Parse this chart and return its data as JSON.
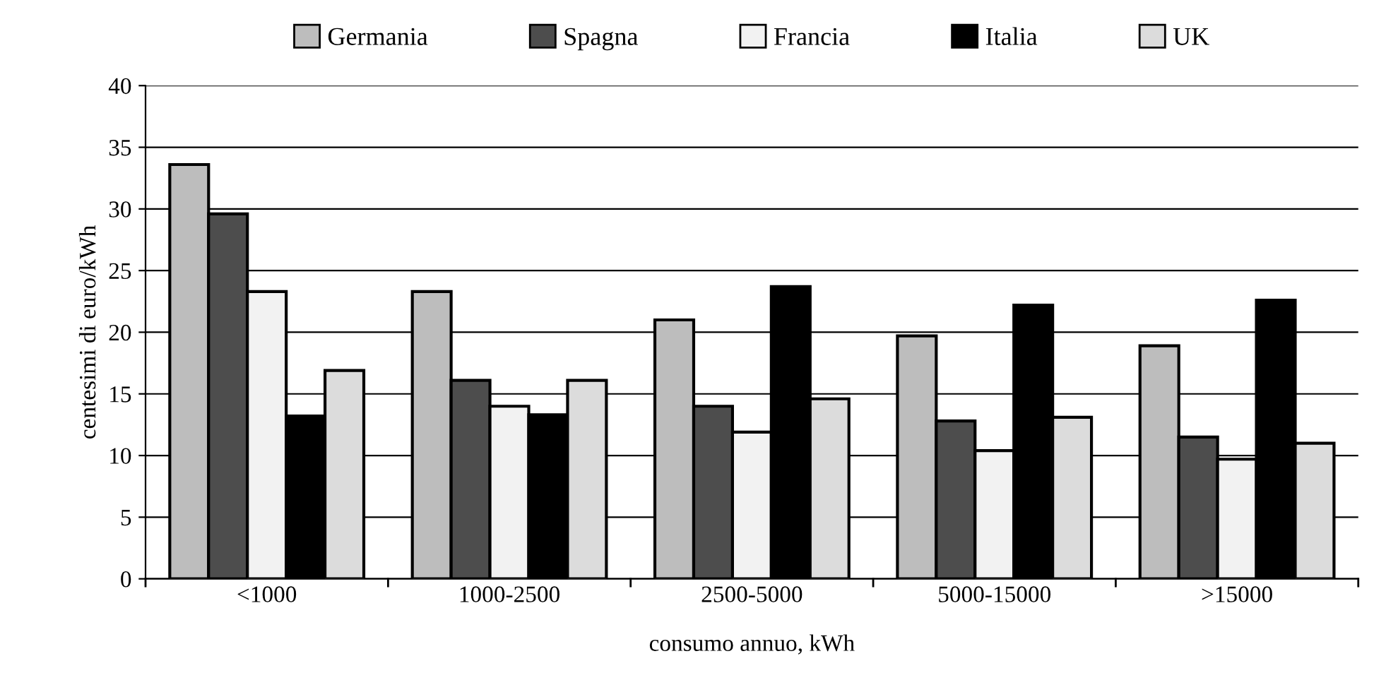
{
  "chart_data": {
    "type": "bar",
    "xlabel": "consumo annuo, kWh",
    "ylabel": "centesimi di euro/kWh",
    "categories": [
      "<1000",
      "1000-2500",
      "2500-5000",
      "5000-15000",
      ">15000"
    ],
    "series": [
      {
        "name": "Germania",
        "color": "#bdbdbd",
        "values": [
          33.6,
          23.3,
          21.0,
          19.7,
          18.9
        ]
      },
      {
        "name": "Spagna",
        "color": "#4d4d4d",
        "values": [
          29.6,
          16.1,
          14.0,
          12.8,
          11.5
        ]
      },
      {
        "name": "Francia",
        "color": "#f2f2f2",
        "values": [
          23.3,
          14.0,
          11.9,
          10.4,
          9.7
        ]
      },
      {
        "name": "Italia",
        "color": "#000000",
        "values": [
          13.2,
          13.3,
          23.7,
          22.2,
          22.6
        ]
      },
      {
        "name": "UK",
        "color": "#dcdcdc",
        "values": [
          16.9,
          16.1,
          14.6,
          13.1,
          11.0
        ]
      }
    ],
    "ylim": [
      0,
      40
    ],
    "yticks": [
      0,
      5,
      10,
      15,
      20,
      25,
      30,
      35,
      40
    ],
    "grid": "y",
    "legend": "top"
  }
}
